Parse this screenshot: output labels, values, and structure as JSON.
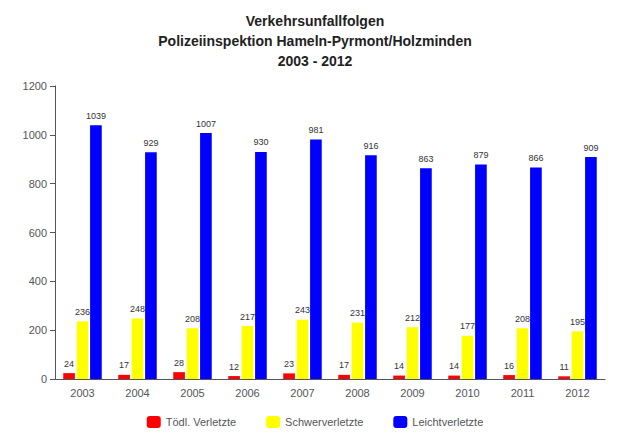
{
  "chart_data": {
    "type": "bar",
    "title": "Verkehrsunfallfolgen\nPolizeiinspektion Hameln-Pyrmont/Holzminden\n2003 - 2012",
    "categories": [
      "2003",
      "2004",
      "2005",
      "2006",
      "2007",
      "2008",
      "2009",
      "2010",
      "2011",
      "2012"
    ],
    "series": [
      {
        "name": "Tödl. Verletzte",
        "color": "#FF0000",
        "values": [
          24,
          17,
          28,
          12,
          23,
          17,
          14,
          14,
          16,
          11
        ]
      },
      {
        "name": "Schwerverletzte",
        "color": "#FFFF00",
        "values": [
          236,
          248,
          208,
          217,
          243,
          231,
          212,
          177,
          208,
          195
        ]
      },
      {
        "name": "Leichtverletzte",
        "color": "#0000FF",
        "values": [
          1039,
          929,
          1007,
          930,
          981,
          916,
          863,
          879,
          866,
          909
        ]
      }
    ],
    "ylim": [
      0,
      1200
    ],
    "yticks": [
      0,
      200,
      400,
      600,
      800,
      1000,
      1200
    ],
    "grid": false,
    "legend": "bottom",
    "data_labels": true
  }
}
